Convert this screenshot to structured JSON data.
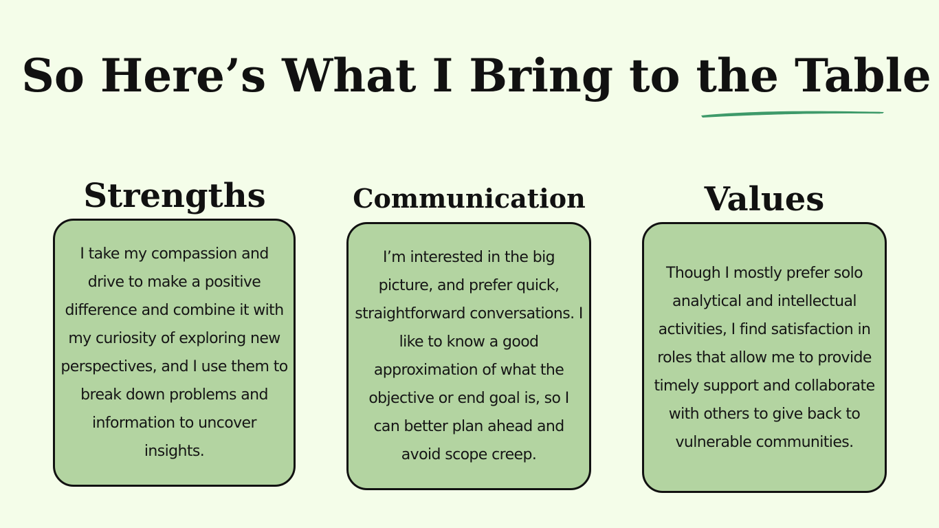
{
  "title": "So Here’s What I Bring to the Table",
  "colors": {
    "background": "#f4fde9",
    "card_fill": "#b3d4a1",
    "card_border": "#111111",
    "accent_underline": "#3e9a6a"
  },
  "columns": [
    {
      "heading": "Strengths",
      "body": "I take my compassion and drive to make a positive difference and combine it with my curiosity of exploring new perspectives, and I use them to break down problems and information to uncover insights."
    },
    {
      "heading": "Communication",
      "body": "I’m interested in the big picture, and prefer quick, straightforward conversations. I like to know a good approximation of what the objective or end goal is, so I can better plan ahead and avoid scope creep."
    },
    {
      "heading": "Values",
      "body": "Though I mostly prefer solo analytical and intellectual activities, I find satisfaction in roles that allow me to provide timely support and collaborate with others to give back to vulnerable communities."
    }
  ]
}
